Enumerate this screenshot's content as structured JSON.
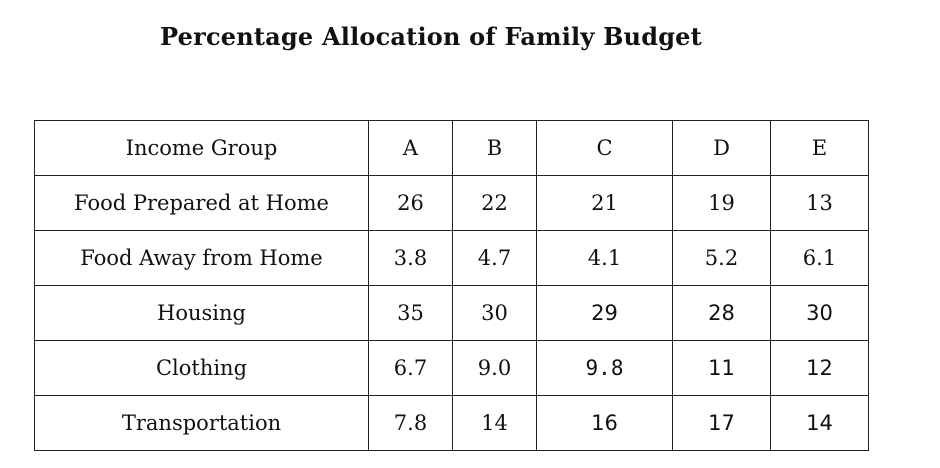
{
  "title": "Percentage Allocation of Family Budget",
  "table": {
    "header": [
      "Income Group",
      "A",
      "B",
      "C",
      "D",
      "E"
    ],
    "rows": [
      [
        "Food Prepared at Home",
        "26",
        "22",
        "21",
        "19",
        "13"
      ],
      [
        "Food Away from Home",
        "3.8",
        "4.7",
        "4.1",
        "5.2",
        "6.1"
      ],
      [
        "Housing",
        "35",
        "30",
        "29",
        "28",
        "30"
      ],
      [
        "Clothing",
        "6.7",
        "9.0",
        "9.8",
        "11",
        "12"
      ],
      [
        "Transportation",
        "7.8",
        "14",
        "16",
        "17",
        "14"
      ]
    ]
  }
}
